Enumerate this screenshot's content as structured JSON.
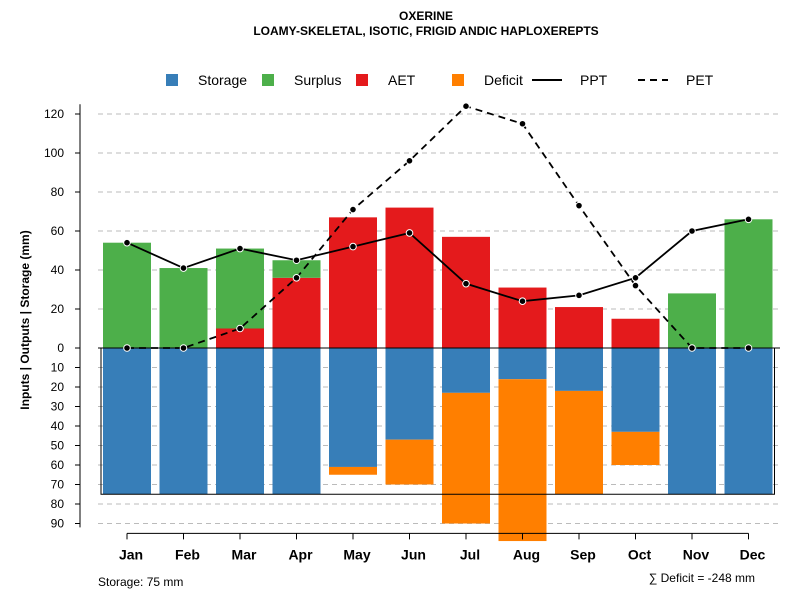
{
  "chart_data": {
    "type": "bar",
    "title": "OXERINE",
    "subtitle": "LOAMY-SKELETAL, ISOTIC, FRIGID ANDIC HAPLOXEREPTS",
    "ylabel": "Inputs | Outputs | Storage    (mm)",
    "categories": [
      "Jan",
      "Feb",
      "Mar",
      "Apr",
      "May",
      "Jun",
      "Jul",
      "Aug",
      "Sep",
      "Oct",
      "Nov",
      "Dec"
    ],
    "ylim_upper": [
      0,
      130
    ],
    "ylim_lower": [
      0,
      95
    ],
    "yticks_upper": [
      "0",
      "20",
      "40",
      "60",
      "80",
      "100",
      "120"
    ],
    "yticks_lower": [
      "10",
      "20",
      "30",
      "40",
      "50",
      "60",
      "70",
      "80",
      "90"
    ],
    "legend": [
      {
        "label": "Storage",
        "kind": "box",
        "color": "#377eb8"
      },
      {
        "label": "Surplus",
        "kind": "box",
        "color": "#4daf4a"
      },
      {
        "label": "AET",
        "kind": "box",
        "color": "#e41a1c"
      },
      {
        "label": "Deficit",
        "kind": "box",
        "color": "#ff7f00"
      },
      {
        "label": "PPT",
        "kind": "solid",
        "color": "#000000"
      },
      {
        "label": "PET",
        "kind": "dashed",
        "color": "#000000"
      }
    ],
    "series": [
      {
        "name": "AET",
        "color": "#e41a1c",
        "values": [
          0,
          0,
          10,
          36,
          67,
          72,
          57,
          31,
          21,
          15,
          0,
          0
        ]
      },
      {
        "name": "Surplus",
        "color": "#4daf4a",
        "values": [
          54,
          41,
          41,
          9,
          0,
          0,
          0,
          0,
          0,
          0,
          28,
          66
        ]
      },
      {
        "name": "Storage",
        "color": "#377eb8",
        "values": [
          75,
          75,
          75,
          75,
          61,
          47,
          23,
          16,
          22,
          43,
          75,
          75
        ]
      },
      {
        "name": "Deficit",
        "color": "#ff7f00",
        "values": [
          0,
          0,
          0,
          0,
          4,
          23,
          67,
          83,
          53,
          17,
          0,
          0
        ]
      },
      {
        "name": "PPT",
        "color": "#000000",
        "values": [
          54,
          41,
          51,
          45,
          52,
          59,
          33,
          24,
          27,
          36,
          60,
          66
        ]
      },
      {
        "name": "PET",
        "color": "#000000",
        "values": [
          0,
          0,
          10,
          36,
          71,
          96,
          124,
          115,
          73,
          32,
          0,
          0
        ]
      }
    ],
    "storage_capacity": 75,
    "footer_left": "Storage: 75 mm",
    "footer_right": "∑ Deficit = -248 mm"
  }
}
